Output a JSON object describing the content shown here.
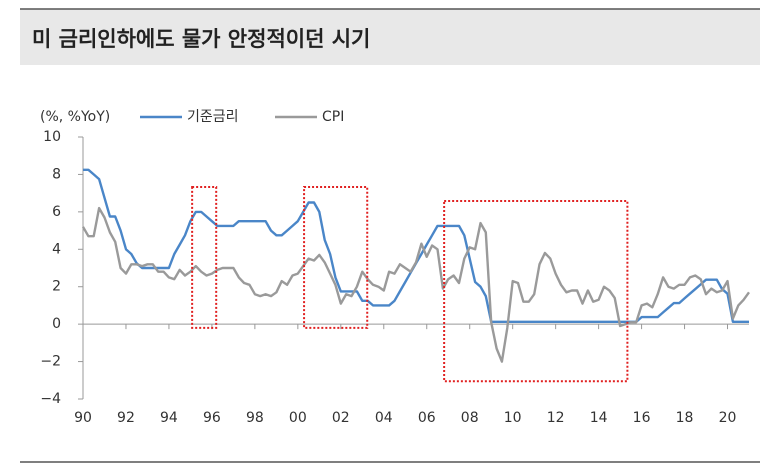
{
  "chart_data": {
    "type": "line",
    "title": "미 금리인하에도 물가 안정적이던 시기",
    "y_unit": "(%, %YoY)",
    "x": [
      1990,
      1990.25,
      1990.5,
      1990.75,
      1991,
      1991.25,
      1991.5,
      1991.75,
      1992,
      1992.25,
      1992.5,
      1992.75,
      1993,
      1993.25,
      1993.5,
      1993.75,
      1994,
      1994.25,
      1994.5,
      1994.75,
      1995,
      1995.25,
      1995.5,
      1995.75,
      1996,
      1996.25,
      1996.5,
      1996.75,
      1997,
      1997.25,
      1997.5,
      1997.75,
      1998,
      1998.25,
      1998.5,
      1998.75,
      1999,
      1999.25,
      1999.5,
      1999.75,
      2000,
      2000.25,
      2000.5,
      2000.75,
      2001,
      2001.25,
      2001.5,
      2001.75,
      2002,
      2002.25,
      2002.5,
      2002.75,
      2003,
      2003.25,
      2003.5,
      2003.75,
      2004,
      2004.25,
      2004.5,
      2004.75,
      2005,
      2005.25,
      2005.5,
      2005.75,
      2006,
      2006.25,
      2006.5,
      2006.75,
      2007,
      2007.25,
      2007.5,
      2007.75,
      2008,
      2008.25,
      2008.5,
      2008.75,
      2009,
      2009.25,
      2009.5,
      2009.75,
      2010,
      2010.25,
      2010.5,
      2010.75,
      2011,
      2011.25,
      2011.5,
      2011.75,
      2012,
      2012.25,
      2012.5,
      2012.75,
      2013,
      2013.25,
      2013.5,
      2013.75,
      2014,
      2014.25,
      2014.5,
      2014.75,
      2015,
      2015.25,
      2015.5,
      2015.75,
      2016,
      2016.25,
      2016.5,
      2016.75,
      2017,
      2017.25,
      2017.5,
      2017.75,
      2018,
      2018.25,
      2018.5,
      2018.75,
      2019,
      2019.25,
      2019.5,
      2019.75,
      2020,
      2020.25,
      2020.5,
      2020.75,
      2021
    ],
    "series": [
      {
        "name": "기준금리",
        "color": "#4a86c8",
        "values": [
          8.25,
          8.25,
          8,
          7.75,
          6.75,
          5.75,
          5.75,
          5,
          4,
          3.75,
          3.25,
          3,
          3,
          3,
          3,
          3,
          3,
          3.75,
          4.25,
          4.75,
          5.5,
          6,
          6,
          5.75,
          5.5,
          5.25,
          5.25,
          5.25,
          5.25,
          5.5,
          5.5,
          5.5,
          5.5,
          5.5,
          5.5,
          5,
          4.75,
          4.75,
          5,
          5.25,
          5.5,
          6,
          6.5,
          6.5,
          6,
          4.5,
          3.75,
          2.5,
          1.75,
          1.75,
          1.75,
          1.75,
          1.25,
          1.25,
          1,
          1,
          1,
          1,
          1.25,
          1.75,
          2.25,
          2.75,
          3.25,
          3.75,
          4.25,
          4.75,
          5.25,
          5.25,
          5.25,
          5.25,
          5.25,
          4.75,
          3.5,
          2.25,
          2,
          1.5,
          0.125,
          0.125,
          0.125,
          0.125,
          0.125,
          0.125,
          0.125,
          0.125,
          0.125,
          0.125,
          0.125,
          0.125,
          0.125,
          0.125,
          0.125,
          0.125,
          0.125,
          0.125,
          0.125,
          0.125,
          0.125,
          0.125,
          0.125,
          0.125,
          0.125,
          0.125,
          0.125,
          0.125,
          0.375,
          0.375,
          0.375,
          0.375,
          0.625,
          0.875,
          1.125,
          1.125,
          1.375,
          1.625,
          1.875,
          2.125,
          2.375,
          2.375,
          2.375,
          1.875,
          1.625,
          0.125,
          0.125,
          0.125,
          0.125
        ]
      },
      {
        "name": "CPI",
        "color": "#9a9a9a",
        "values": [
          5.2,
          4.7,
          4.7,
          6.2,
          5.7,
          4.9,
          4.4,
          3,
          2.7,
          3.2,
          3.2,
          3.1,
          3.2,
          3.2,
          2.8,
          2.8,
          2.5,
          2.4,
          2.9,
          2.6,
          2.8,
          3.1,
          2.8,
          2.6,
          2.7,
          2.9,
          3,
          3,
          3,
          2.5,
          2.2,
          2.1,
          1.6,
          1.5,
          1.6,
          1.5,
          1.7,
          2.3,
          2.1,
          2.6,
          2.7,
          3.1,
          3.5,
          3.4,
          3.7,
          3.3,
          2.7,
          2.1,
          1.1,
          1.6,
          1.5,
          2,
          2.8,
          2.4,
          2.1,
          2,
          1.8,
          2.8,
          2.7,
          3.2,
          3,
          2.8,
          3.3,
          4.3,
          3.6,
          4.2,
          4,
          1.9,
          2.4,
          2.6,
          2.2,
          3.5,
          4.1,
          4,
          5.4,
          4.9,
          0.1,
          -1.3,
          -2,
          -0.2,
          2.3,
          2.2,
          1.2,
          1.2,
          1.6,
          3.2,
          3.8,
          3.5,
          2.7,
          2.1,
          1.7,
          1.8,
          1.8,
          1.1,
          1.8,
          1.2,
          1.3,
          2,
          1.8,
          1.4,
          -0.1,
          0,
          0.1,
          0.1,
          1,
          1.1,
          0.9,
          1.6,
          2.5,
          2,
          1.9,
          2.1,
          2.1,
          2.5,
          2.6,
          2.4,
          1.6,
          1.9,
          1.7,
          1.8,
          2.3,
          0.3,
          1,
          1.3,
          1.7
        ]
      }
    ],
    "xlim": [
      1990,
      2021
    ],
    "xticks": [
      {
        "value": 1990,
        "label": "90"
      },
      {
        "value": 1992,
        "label": "92"
      },
      {
        "value": 1994,
        "label": "94"
      },
      {
        "value": 1996,
        "label": "96"
      },
      {
        "value": 1998,
        "label": "98"
      },
      {
        "value": 2000,
        "label": "00"
      },
      {
        "value": 2002,
        "label": "02"
      },
      {
        "value": 2004,
        "label": "04"
      },
      {
        "value": 2006,
        "label": "06"
      },
      {
        "value": 2008,
        "label": "08"
      },
      {
        "value": 2010,
        "label": "10"
      },
      {
        "value": 2012,
        "label": "12"
      },
      {
        "value": 2014,
        "label": "14"
      },
      {
        "value": 2016,
        "label": "16"
      },
      {
        "value": 2018,
        "label": "18"
      },
      {
        "value": 2020,
        "label": "20"
      }
    ],
    "ylim": [
      -4,
      10
    ],
    "yticks": [
      {
        "value": -4,
        "label": "−4"
      },
      {
        "value": -2,
        "label": "−2"
      },
      0,
      2,
      4,
      6,
      8,
      10
    ],
    "highlight_boxes": [
      {
        "x": [
          1995.08,
          1996.2
        ],
        "y": [
          -0.2,
          7.33
        ]
      },
      {
        "x": [
          2000.29,
          2003.23
        ],
        "y": [
          -0.2,
          7.33
        ]
      },
      {
        "x": [
          2006.81,
          2015.34
        ],
        "y": [
          -3.05,
          6.58
        ]
      }
    ],
    "highlight_color": "#e02020"
  }
}
